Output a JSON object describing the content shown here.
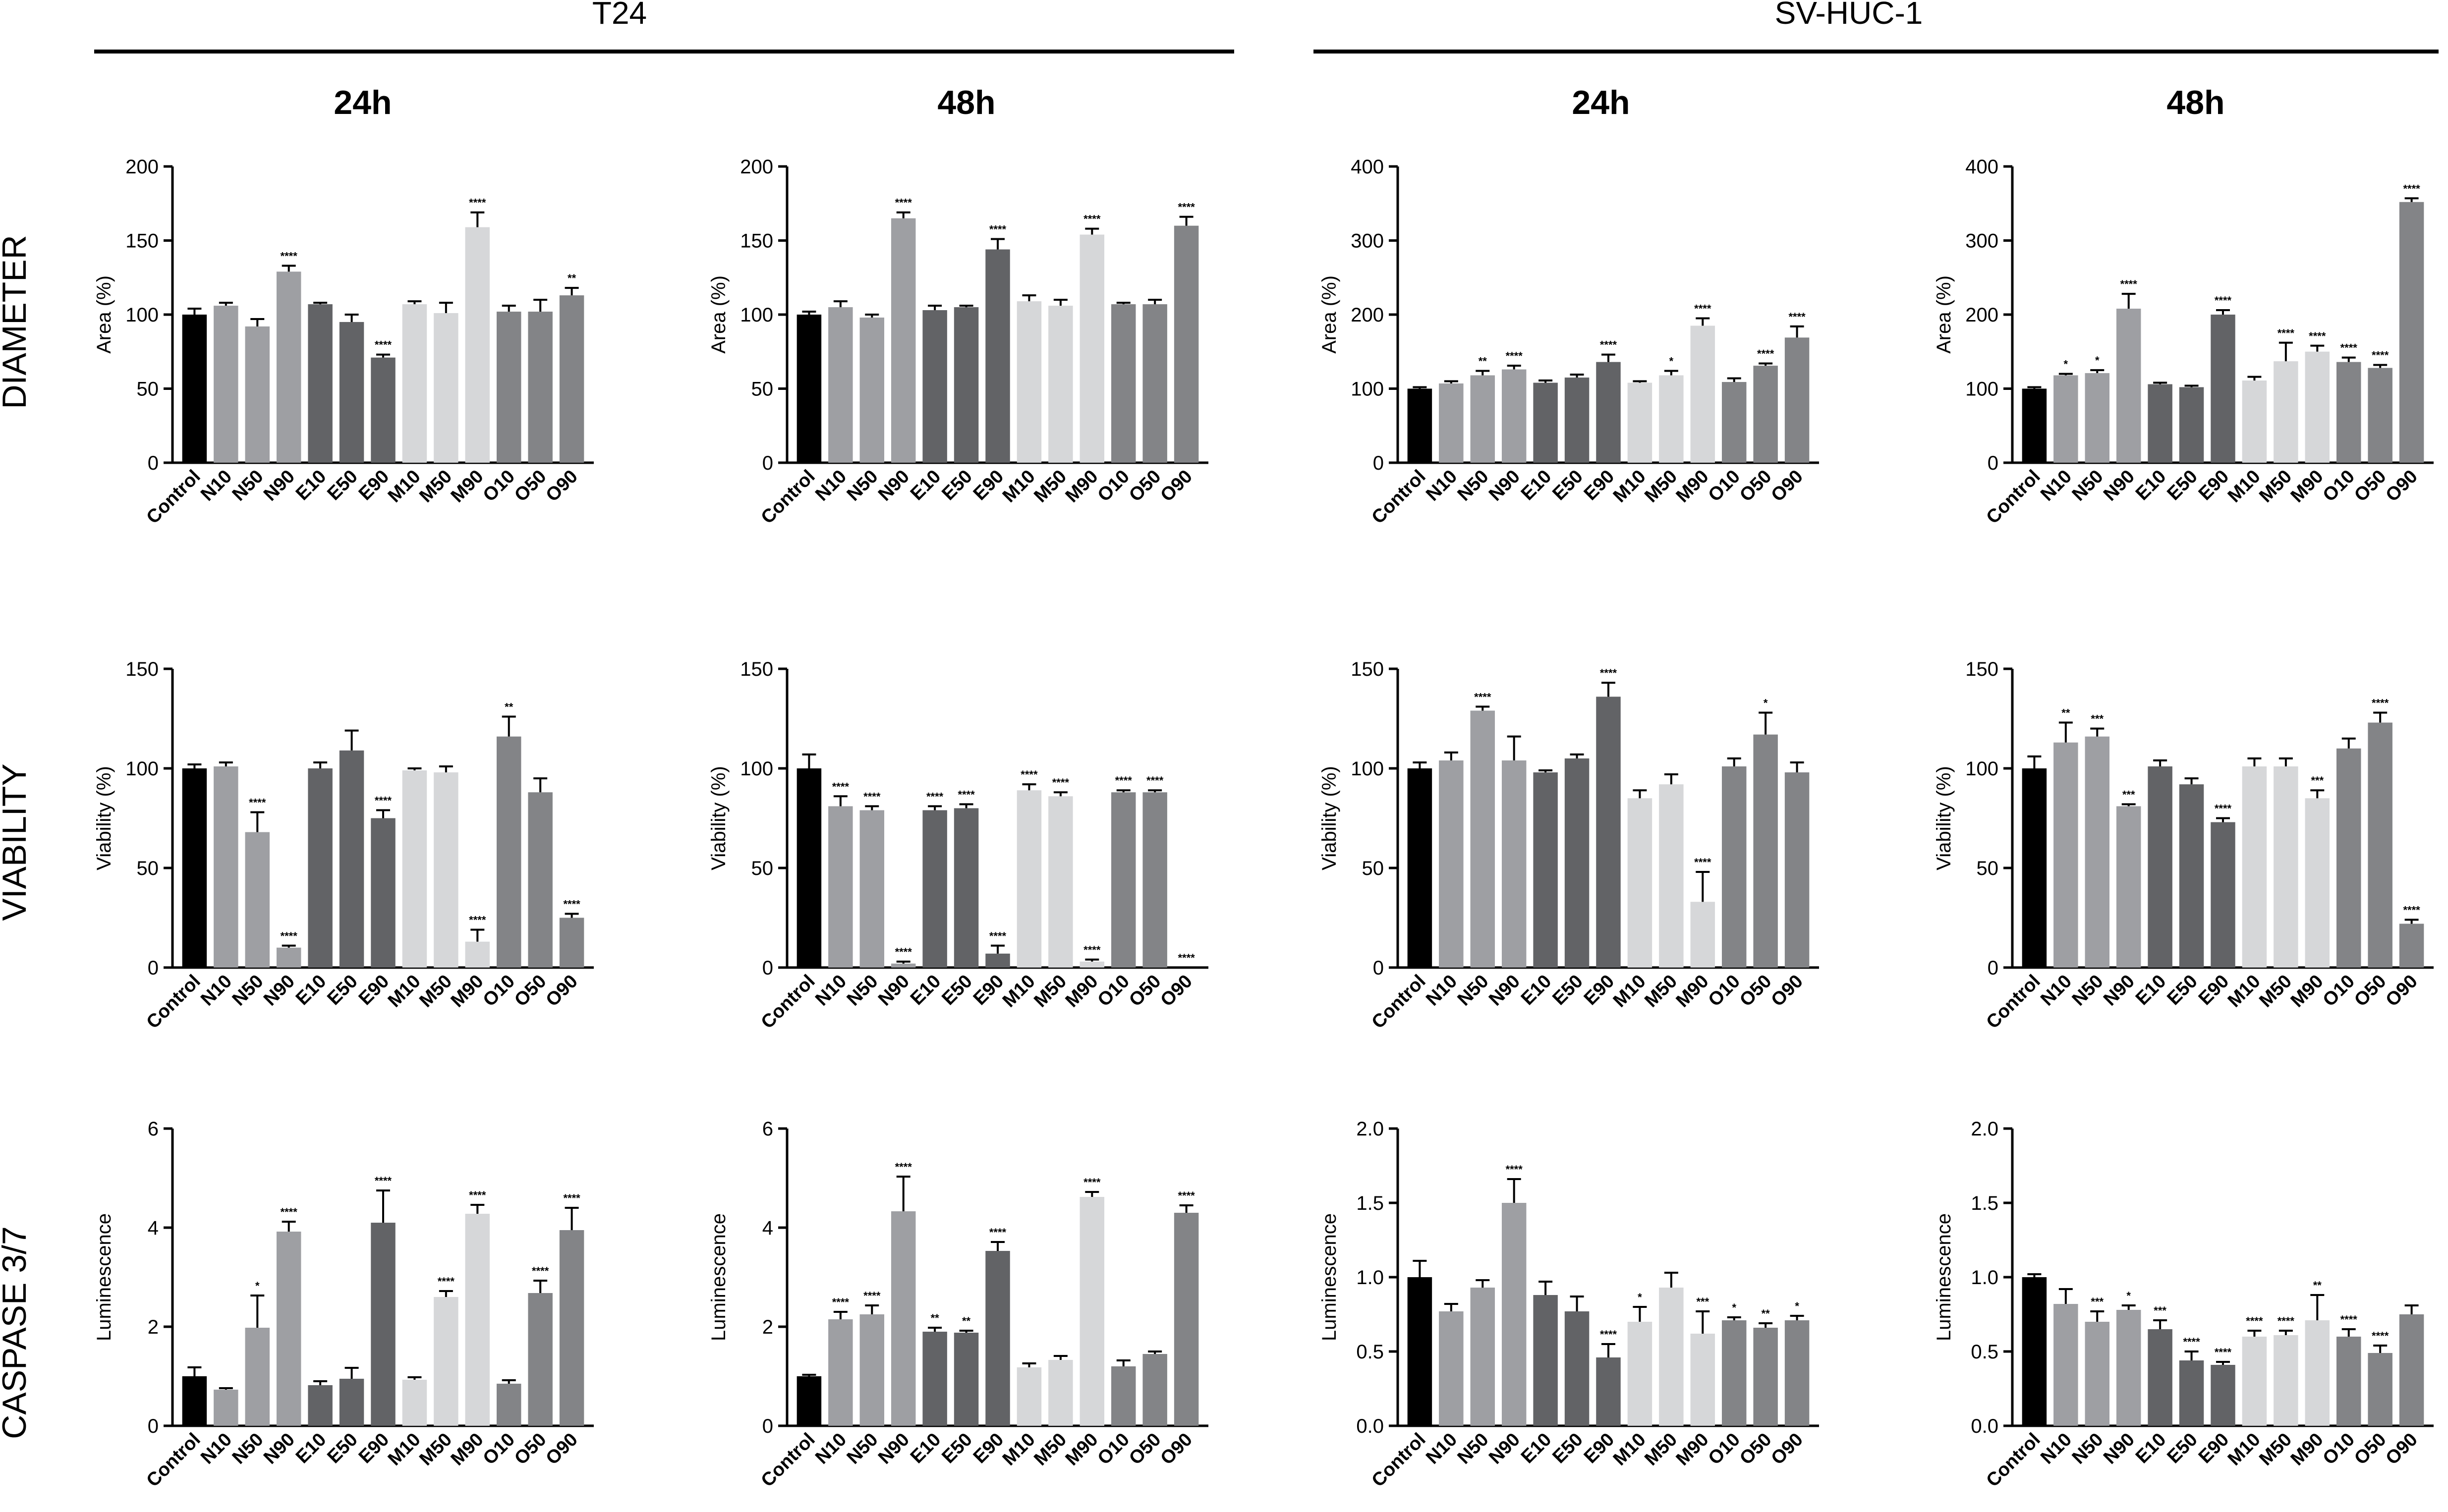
{
  "groups": [
    {
      "label": "T24"
    },
    {
      "label": "SV-HUC-1"
    }
  ],
  "timepoints": [
    "24h",
    "48h",
    "24h",
    "48h"
  ],
  "rows": [
    {
      "label": "DIAMETER",
      "ylabel": "Area (%)"
    },
    {
      "label": "VIABILITY",
      "ylabel": "Viability (%)"
    },
    {
      "label": "CASPASE 3/7",
      "ylabel": "Luminescence"
    }
  ],
  "colors": {
    "Control": "#000000",
    "N": "#9e9fa3",
    "E": "#626366",
    "M": "#d6d7d9",
    "O": "#838487"
  },
  "chart_data": [
    {
      "type": "bar",
      "group": "T24",
      "time": "24h",
      "row": "DIAMETER",
      "ylabel": "Area (%)",
      "categories": [
        "Control",
        "N10",
        "N50",
        "N90",
        "E10",
        "E50",
        "E90",
        "M10",
        "M50",
        "M90",
        "O10",
        "O50",
        "O90"
      ],
      "values": [
        100,
        106,
        92,
        129,
        107,
        95,
        71,
        107,
        101,
        159,
        102,
        102,
        113
      ],
      "errors": [
        4,
        2,
        5,
        4,
        1,
        5,
        2,
        2,
        7,
        10,
        4,
        8,
        5
      ],
      "significance": [
        "",
        "",
        "",
        "****",
        "",
        "",
        "****",
        "",
        "",
        "****",
        "",
        "",
        "**"
      ],
      "ylim": [
        0,
        200
      ],
      "yticks": [
        0,
        50,
        100,
        150,
        200
      ],
      "tick_labels": [
        "0",
        "50",
        "100",
        "150",
        "200"
      ]
    },
    {
      "type": "bar",
      "group": "T24",
      "time": "48h",
      "row": "DIAMETER",
      "ylabel": "Area (%)",
      "categories": [
        "Control",
        "N10",
        "N50",
        "N90",
        "E10",
        "E50",
        "E90",
        "M10",
        "M50",
        "M90",
        "O10",
        "O50",
        "O90"
      ],
      "values": [
        100,
        105,
        98,
        165,
        103,
        105,
        144,
        109,
        106,
        154,
        107,
        107,
        160
      ],
      "errors": [
        2,
        4,
        2,
        4,
        3,
        1,
        7,
        4,
        4,
        4,
        1,
        3,
        6
      ],
      "significance": [
        "",
        "",
        "",
        "****",
        "",
        "",
        "****",
        "",
        "",
        "****",
        "",
        "",
        "****"
      ],
      "ylim": [
        0,
        200
      ],
      "yticks": [
        0,
        50,
        100,
        150,
        200
      ],
      "tick_labels": [
        "0",
        "50",
        "100",
        "150",
        "200"
      ]
    },
    {
      "type": "bar",
      "group": "SV-HUC-1",
      "time": "24h",
      "row": "DIAMETER",
      "ylabel": "Area (%)",
      "categories": [
        "Control",
        "N10",
        "N50",
        "N90",
        "E10",
        "E50",
        "E90",
        "M10",
        "M50",
        "M90",
        "O10",
        "O50",
        "O90"
      ],
      "values": [
        100,
        107,
        118,
        126,
        108,
        115,
        136,
        108,
        118,
        185,
        109,
        131,
        169
      ],
      "errors": [
        2,
        3,
        6,
        5,
        3,
        4,
        10,
        2,
        6,
        10,
        5,
        3,
        15
      ],
      "significance": [
        "",
        "",
        "**",
        "****",
        "",
        "",
        "****",
        "",
        "*",
        "****",
        "",
        "****",
        "****"
      ],
      "ylim": [
        0,
        400
      ],
      "yticks": [
        0,
        100,
        200,
        300,
        400
      ],
      "tick_labels": [
        "0",
        "100",
        "200",
        "300",
        "400"
      ]
    },
    {
      "type": "bar",
      "group": "SV-HUC-1",
      "time": "48h",
      "row": "DIAMETER",
      "ylabel": "Area (%)",
      "categories": [
        "Control",
        "N10",
        "N50",
        "N90",
        "E10",
        "E50",
        "E90",
        "M10",
        "M50",
        "M90",
        "O10",
        "O50",
        "O90"
      ],
      "values": [
        100,
        118,
        121,
        208,
        106,
        102,
        200,
        111,
        137,
        150,
        136,
        128,
        352
      ],
      "errors": [
        2,
        2,
        4,
        20,
        2,
        2,
        6,
        5,
        25,
        8,
        6,
        4,
        5
      ],
      "significance": [
        "",
        "*",
        "*",
        "****",
        "",
        "",
        "****",
        "",
        "****",
        "****",
        "****",
        "****",
        "****"
      ],
      "ylim": [
        0,
        400
      ],
      "yticks": [
        0,
        100,
        200,
        300,
        400
      ],
      "tick_labels": [
        "0",
        "100",
        "200",
        "300",
        "400"
      ]
    },
    {
      "type": "bar",
      "group": "T24",
      "time": "24h",
      "row": "VIABILITY",
      "ylabel": "Viability (%)",
      "categories": [
        "Control",
        "N10",
        "N50",
        "N90",
        "E10",
        "E50",
        "E90",
        "M10",
        "M50",
        "M90",
        "O10",
        "O50",
        "O90"
      ],
      "values": [
        100,
        101,
        68,
        10,
        100,
        109,
        75,
        99,
        98,
        13,
        116,
        88,
        25
      ],
      "errors": [
        2,
        2,
        10,
        1,
        3,
        10,
        4,
        1,
        3,
        6,
        10,
        7,
        2
      ],
      "significance": [
        "",
        "",
        "****",
        "****",
        "",
        "",
        "****",
        "",
        "",
        "****",
        "**",
        "",
        "****"
      ],
      "ylim": [
        0,
        150
      ],
      "yticks": [
        0,
        50,
        100,
        150
      ],
      "tick_labels": [
        "0",
        "50",
        "100",
        "150"
      ]
    },
    {
      "type": "bar",
      "group": "T24",
      "time": "48h",
      "row": "VIABILITY",
      "ylabel": "Viability (%)",
      "categories": [
        "Control",
        "N10",
        "N50",
        "N90",
        "E10",
        "E50",
        "E90",
        "M10",
        "M50",
        "M90",
        "O10",
        "O50",
        "O90"
      ],
      "values": [
        100,
        81,
        79,
        2,
        79,
        80,
        7,
        89,
        86,
        3,
        88,
        88,
        0
      ],
      "errors": [
        7,
        5,
        2,
        1,
        2,
        2,
        4,
        3,
        2,
        1,
        1,
        1,
        0
      ],
      "significance": [
        "",
        "****",
        "****",
        "****",
        "****",
        "****",
        "****",
        "****",
        "****",
        "****",
        "****",
        "****",
        "****"
      ],
      "ylim": [
        0,
        150
      ],
      "yticks": [
        0,
        50,
        100,
        150
      ],
      "tick_labels": [
        "0",
        "50",
        "100",
        "150"
      ]
    },
    {
      "type": "bar",
      "group": "SV-HUC-1",
      "time": "24h",
      "row": "VIABILITY",
      "ylabel": "Viability (%)",
      "categories": [
        "Control",
        "N10",
        "N50",
        "N90",
        "E10",
        "E50",
        "E90",
        "M10",
        "M50",
        "M90",
        "O10",
        "O50",
        "O90"
      ],
      "values": [
        100,
        104,
        129,
        104,
        98,
        105,
        136,
        85,
        92,
        33,
        101,
        117,
        98
      ],
      "errors": [
        3,
        4,
        2,
        12,
        1,
        2,
        7,
        4,
        5,
        15,
        4,
        11,
        5
      ],
      "significance": [
        "",
        "",
        "****",
        "",
        "",
        "",
        "****",
        "",
        "",
        "****",
        "",
        "*",
        ""
      ],
      "ylim": [
        0,
        150
      ],
      "yticks": [
        0,
        50,
        100,
        150
      ],
      "tick_labels": [
        "0",
        "50",
        "100",
        "150"
      ]
    },
    {
      "type": "bar",
      "group": "SV-HUC-1",
      "time": "48h",
      "row": "VIABILITY",
      "ylabel": "Viability (%)",
      "categories": [
        "Control",
        "N10",
        "N50",
        "N90",
        "E10",
        "E50",
        "E90",
        "M10",
        "M50",
        "M90",
        "O10",
        "O50",
        "O90"
      ],
      "values": [
        100,
        113,
        116,
        81,
        101,
        92,
        73,
        101,
        101,
        85,
        110,
        123,
        22
      ],
      "errors": [
        6,
        10,
        4,
        1,
        3,
        3,
        2,
        4,
        4,
        4,
        5,
        5,
        2
      ],
      "significance": [
        "",
        "**",
        "***",
        "***",
        "",
        "",
        "****",
        "",
        "",
        "***",
        "",
        "****",
        "****"
      ],
      "ylim": [
        0,
        150
      ],
      "yticks": [
        0,
        50,
        100,
        150
      ],
      "tick_labels": [
        "0",
        "50",
        "100",
        "150"
      ]
    },
    {
      "type": "bar",
      "group": "T24",
      "time": "24h",
      "row": "CASPASE 3/7",
      "ylabel": "Luminescence",
      "categories": [
        "Control",
        "N10",
        "N50",
        "N90",
        "E10",
        "E50",
        "E90",
        "M10",
        "M50",
        "M90",
        "O10",
        "O50",
        "O90"
      ],
      "values": [
        1.0,
        0.73,
        1.98,
        3.92,
        0.82,
        0.95,
        4.1,
        0.93,
        2.6,
        4.28,
        0.85,
        2.68,
        3.95
      ],
      "errors": [
        0.18,
        0.03,
        0.65,
        0.2,
        0.08,
        0.22,
        0.65,
        0.05,
        0.12,
        0.18,
        0.07,
        0.25,
        0.45
      ],
      "significance": [
        "",
        "",
        "*",
        "****",
        "",
        "",
        "****",
        "",
        "****",
        "****",
        "",
        "****",
        "****"
      ],
      "ylim": [
        0,
        6
      ],
      "yticks": [
        0,
        2,
        4,
        6
      ],
      "tick_labels": [
        "0",
        "2",
        "4",
        "6"
      ]
    },
    {
      "type": "bar",
      "group": "T24",
      "time": "48h",
      "row": "CASPASE 3/7",
      "ylabel": "Luminescence",
      "categories": [
        "Control",
        "N10",
        "N50",
        "N90",
        "E10",
        "E50",
        "E90",
        "M10",
        "M50",
        "M90",
        "O10",
        "O50",
        "O90"
      ],
      "values": [
        1.0,
        2.15,
        2.25,
        4.33,
        1.9,
        1.88,
        3.53,
        1.18,
        1.33,
        4.62,
        1.2,
        1.45,
        4.3
      ],
      "errors": [
        0.03,
        0.15,
        0.18,
        0.7,
        0.08,
        0.04,
        0.18,
        0.08,
        0.08,
        0.1,
        0.12,
        0.05,
        0.15
      ],
      "significance": [
        "",
        "****",
        "****",
        "****",
        "**",
        "**",
        "****",
        "",
        "",
        "****",
        "",
        "",
        "****"
      ],
      "ylim": [
        0,
        6
      ],
      "yticks": [
        0,
        2,
        4,
        6
      ],
      "tick_labels": [
        "0",
        "2",
        "4",
        "6"
      ]
    },
    {
      "type": "bar",
      "group": "SV-HUC-1",
      "time": "24h",
      "row": "CASPASE 3/7",
      "ylabel": "Luminescence",
      "categories": [
        "Control",
        "N10",
        "N50",
        "N90",
        "E10",
        "E50",
        "E90",
        "M10",
        "M50",
        "M90",
        "O10",
        "O50",
        "O90"
      ],
      "values": [
        1.0,
        0.77,
        0.93,
        1.5,
        0.88,
        0.77,
        0.46,
        0.7,
        0.93,
        0.62,
        0.71,
        0.66,
        0.71
      ],
      "errors": [
        0.11,
        0.05,
        0.05,
        0.16,
        0.09,
        0.1,
        0.09,
        0.1,
        0.1,
        0.15,
        0.02,
        0.03,
        0.03
      ],
      "significance": [
        "",
        "",
        "",
        "****",
        "",
        "",
        "****",
        "*",
        "",
        "***",
        "*",
        "**",
        "*"
      ],
      "ylim": [
        0,
        2
      ],
      "yticks": [
        0,
        0.5,
        1,
        1.5,
        2
      ],
      "tick_labels": [
        "0.0",
        "0.5",
        "1.0",
        "1.5",
        "2.0"
      ]
    },
    {
      "type": "bar",
      "group": "SV-HUC-1",
      "time": "48h",
      "row": "CASPASE 3/7",
      "ylabel": "Luminescence",
      "categories": [
        "Control",
        "N10",
        "N50",
        "N90",
        "E10",
        "E50",
        "E90",
        "M10",
        "M50",
        "M90",
        "O10",
        "O50",
        "O90"
      ],
      "values": [
        1.0,
        0.82,
        0.7,
        0.78,
        0.65,
        0.44,
        0.41,
        0.6,
        0.61,
        0.71,
        0.6,
        0.49,
        0.75
      ],
      "errors": [
        0.02,
        0.1,
        0.07,
        0.03,
        0.06,
        0.06,
        0.02,
        0.04,
        0.03,
        0.17,
        0.05,
        0.05,
        0.06
      ],
      "significance": [
        "",
        "",
        "***",
        "*",
        "***",
        "****",
        "****",
        "****",
        "****",
        "**",
        "****",
        "****",
        ""
      ],
      "ylim": [
        0,
        2
      ],
      "yticks": [
        0,
        0.5,
        1,
        1.5,
        2
      ],
      "tick_labels": [
        "0.0",
        "0.5",
        "1.0",
        "1.5",
        "2.0"
      ]
    }
  ]
}
